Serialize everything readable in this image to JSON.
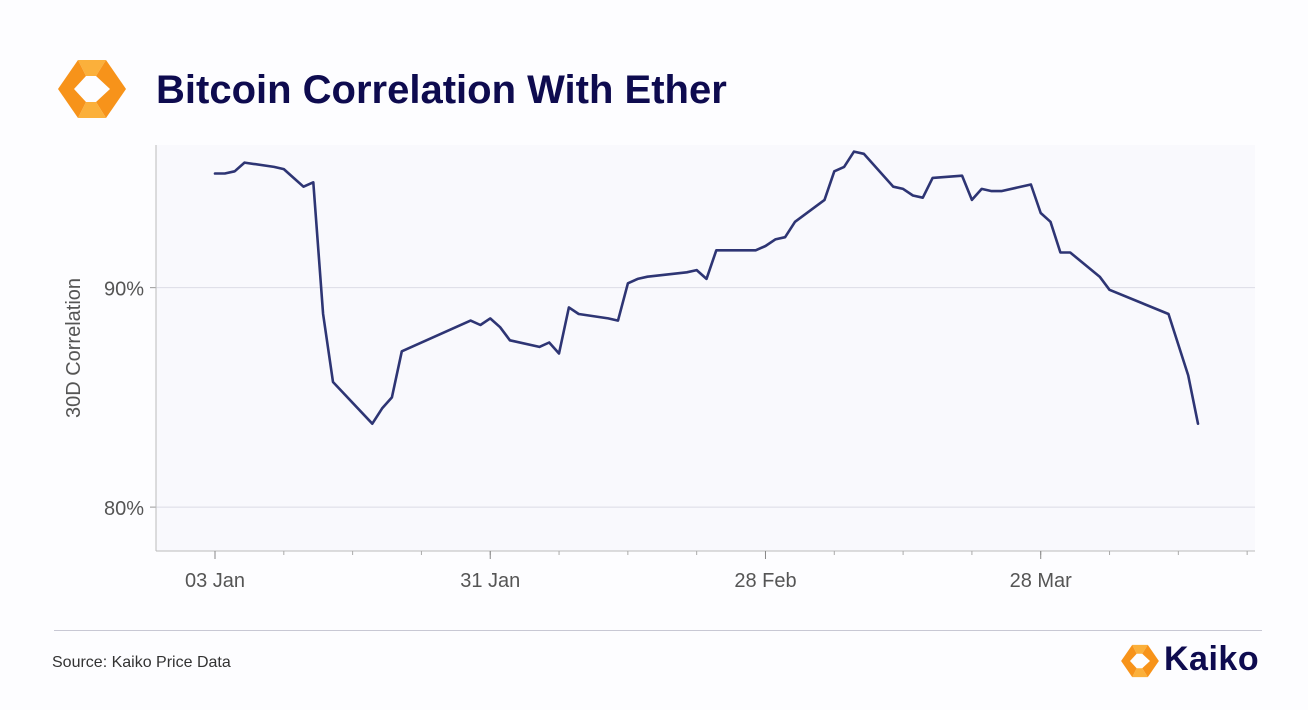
{
  "header": {
    "title": "Bitcoin Correlation With Ether",
    "logo_icon": "kaiko-logo-icon"
  },
  "footer": {
    "source": "Source: Kaiko Price Data",
    "brand_name": "Kaiko",
    "brand_icon": "kaiko-logo-icon"
  },
  "colors": {
    "line": "#2e3574",
    "title": "#0e0b4f",
    "logo_orange": "#f7931a",
    "logo_amber": "#fbb03b",
    "grid": "#dcdce6",
    "axis_text": "#555555"
  },
  "chart_data": {
    "type": "line",
    "title": "Bitcoin Correlation With Ether",
    "ylabel": "30D Correlation",
    "xlabel": "",
    "x_ticks": [
      "03 Jan",
      "31 Jan",
      "28 Feb",
      "28 Mar"
    ],
    "y_ticks": [
      "80%",
      "90%"
    ],
    "ylim": [
      0.78,
      0.965
    ],
    "grid": true,
    "series": [
      {
        "values": [
          [
            "2022-01-03",
            0.952
          ],
          [
            "2022-01-04",
            0.952
          ],
          [
            "2022-01-05",
            0.953
          ],
          [
            "2022-01-06",
            0.957
          ],
          [
            "2022-01-09",
            0.955
          ],
          [
            "2022-01-10",
            0.954
          ],
          [
            "2022-01-11",
            0.95
          ],
          [
            "2022-01-12",
            0.946
          ],
          [
            "2022-01-13",
            0.948
          ],
          [
            "2022-01-14",
            0.888
          ],
          [
            "2022-01-15",
            0.857
          ],
          [
            "2022-01-19",
            0.838
          ],
          [
            "2022-01-20",
            0.845
          ],
          [
            "2022-01-21",
            0.85
          ],
          [
            "2022-01-22",
            0.871
          ],
          [
            "2022-01-29",
            0.885
          ],
          [
            "2022-01-30",
            0.883
          ],
          [
            "2022-01-31",
            0.886
          ],
          [
            "2022-02-01",
            0.882
          ],
          [
            "2022-02-02",
            0.876
          ],
          [
            "2022-02-05",
            0.873
          ],
          [
            "2022-02-06",
            0.875
          ],
          [
            "2022-02-07",
            0.87
          ],
          [
            "2022-02-08",
            0.891
          ],
          [
            "2022-02-09",
            0.888
          ],
          [
            "2022-02-12",
            0.886
          ],
          [
            "2022-02-13",
            0.885
          ],
          [
            "2022-02-14",
            0.902
          ],
          [
            "2022-02-15",
            0.904
          ],
          [
            "2022-02-16",
            0.905
          ],
          [
            "2022-02-20",
            0.907
          ],
          [
            "2022-02-21",
            0.908
          ],
          [
            "2022-02-22",
            0.904
          ],
          [
            "2022-02-23",
            0.917
          ],
          [
            "2022-02-27",
            0.917
          ],
          [
            "2022-02-28",
            0.919
          ],
          [
            "2022-03-01",
            0.922
          ],
          [
            "2022-03-02",
            0.923
          ],
          [
            "2022-03-03",
            0.93
          ],
          [
            "2022-03-06",
            0.94
          ],
          [
            "2022-03-07",
            0.953
          ],
          [
            "2022-03-08",
            0.955
          ],
          [
            "2022-03-09",
            0.962
          ],
          [
            "2022-03-10",
            0.961
          ],
          [
            "2022-03-13",
            0.946
          ],
          [
            "2022-03-14",
            0.945
          ],
          [
            "2022-03-15",
            0.942
          ],
          [
            "2022-03-16",
            0.941
          ],
          [
            "2022-03-17",
            0.95
          ],
          [
            "2022-03-20",
            0.951
          ],
          [
            "2022-03-21",
            0.94
          ],
          [
            "2022-03-22",
            0.945
          ],
          [
            "2022-03-23",
            0.944
          ],
          [
            "2022-03-24",
            0.944
          ],
          [
            "2022-03-27",
            0.947
          ],
          [
            "2022-03-28",
            0.934
          ],
          [
            "2022-03-29",
            0.93
          ],
          [
            "2022-03-30",
            0.916
          ],
          [
            "2022-03-31",
            0.916
          ],
          [
            "2022-04-03",
            0.905
          ],
          [
            "2022-04-04",
            0.899
          ],
          [
            "2022-04-10",
            0.888
          ],
          [
            "2022-04-12",
            0.86
          ],
          [
            "2022-04-13",
            0.838
          ]
        ]
      }
    ]
  }
}
